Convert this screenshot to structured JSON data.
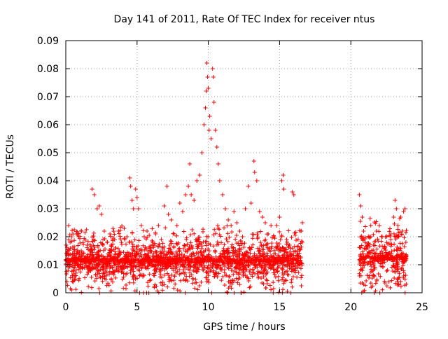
{
  "chart_data": {
    "type": "scatter",
    "title": "Day 141 of 2011, Rate Of TEC Index for receiver ntus",
    "xlabel": "GPS time / hours",
    "ylabel": "ROTI / TECUs",
    "xlim": [
      0,
      25
    ],
    "ylim": [
      0,
      0.09
    ],
    "xticks": [
      0,
      5,
      10,
      15,
      20,
      25
    ],
    "xtick_labels": [
      "0",
      "5",
      "10",
      "15",
      "20",
      "25"
    ],
    "yticks": [
      0,
      0.01,
      0.02,
      0.03,
      0.04,
      0.05,
      0.06,
      0.07,
      0.08,
      0.09
    ],
    "ytick_labels": [
      "0",
      "0.01",
      "0.02",
      "0.03",
      "0.04",
      "0.05",
      "0.06",
      "0.07",
      "0.08",
      "0.09"
    ],
    "grid": true,
    "marker": "plus",
    "color": "#ff0000",
    "series": [
      {
        "points": [
          [
            0.1,
            0.012
          ],
          [
            0.2,
            0.024
          ],
          [
            0.3,
            0.018
          ],
          [
            0.5,
            0.021
          ],
          [
            0.7,
            0.011
          ],
          [
            0.9,
            0.02
          ],
          [
            1.1,
            0.022
          ],
          [
            1.3,
            0.009
          ],
          [
            1.5,
            0.017
          ],
          [
            1.7,
            0.013
          ],
          [
            1.85,
            0.037
          ],
          [
            2.0,
            0.035
          ],
          [
            2.2,
            0.03
          ],
          [
            2.35,
            0.031
          ],
          [
            2.5,
            0.028
          ],
          [
            2.7,
            0.022
          ],
          [
            2.9,
            0.018
          ],
          [
            3.1,
            0.021
          ],
          [
            3.3,
            0.019
          ],
          [
            3.5,
            0.016
          ],
          [
            3.7,
            0.022
          ],
          [
            3.9,
            0.018
          ],
          [
            4.1,
            0.023
          ],
          [
            4.3,
            0.02
          ],
          [
            4.5,
            0.041
          ],
          [
            4.55,
            0.038
          ],
          [
            4.65,
            0.033
          ],
          [
            4.75,
            0.03
          ],
          [
            4.9,
            0.037
          ],
          [
            5.0,
            0.034
          ],
          [
            5.1,
            0.03
          ],
          [
            5.3,
            0.024
          ],
          [
            5.5,
            0.02
          ],
          [
            5.7,
            0.022
          ],
          [
            5.9,
            0.016
          ],
          [
            6.1,
            0.018
          ],
          [
            6.3,
            0.021
          ],
          [
            6.5,
            0.024
          ],
          [
            6.7,
            0.019
          ],
          [
            6.9,
            0.031
          ],
          [
            7.1,
            0.038
          ],
          [
            7.2,
            0.028
          ],
          [
            7.4,
            0.026
          ],
          [
            7.6,
            0.021
          ],
          [
            7.8,
            0.024
          ],
          [
            8.0,
            0.032
          ],
          [
            8.2,
            0.029
          ],
          [
            8.4,
            0.035
          ],
          [
            8.6,
            0.038
          ],
          [
            8.7,
            0.046
          ],
          [
            8.8,
            0.035
          ],
          [
            9.0,
            0.033
          ],
          [
            9.2,
            0.04
          ],
          [
            9.4,
            0.042
          ],
          [
            9.55,
            0.05
          ],
          [
            9.7,
            0.06
          ],
          [
            9.8,
            0.066
          ],
          [
            9.85,
            0.072
          ],
          [
            9.9,
            0.082
          ],
          [
            9.95,
            0.077
          ],
          [
            10.0,
            0.073
          ],
          [
            10.05,
            0.058
          ],
          [
            10.1,
            0.063
          ],
          [
            10.2,
            0.055
          ],
          [
            10.3,
            0.08
          ],
          [
            10.35,
            0.077
          ],
          [
            10.4,
            0.068
          ],
          [
            10.5,
            0.058
          ],
          [
            10.6,
            0.052
          ],
          [
            10.7,
            0.046
          ],
          [
            10.8,
            0.04
          ],
          [
            11.0,
            0.035
          ],
          [
            11.2,
            0.03
          ],
          [
            11.4,
            0.026
          ],
          [
            11.6,
            0.024
          ],
          [
            11.8,
            0.029
          ],
          [
            12.0,
            0.025
          ],
          [
            12.2,
            0.022
          ],
          [
            12.4,
            0.02
          ],
          [
            12.6,
            0.03
          ],
          [
            12.8,
            0.038
          ],
          [
            13.0,
            0.032
          ],
          [
            13.2,
            0.047
          ],
          [
            13.25,
            0.043
          ],
          [
            13.4,
            0.04
          ],
          [
            13.6,
            0.029
          ],
          [
            13.8,
            0.027
          ],
          [
            14.0,
            0.025
          ],
          [
            14.2,
            0.021
          ],
          [
            14.4,
            0.024
          ],
          [
            14.6,
            0.02
          ],
          [
            14.8,
            0.024
          ],
          [
            15.0,
            0.027
          ],
          [
            15.15,
            0.04
          ],
          [
            15.25,
            0.042
          ],
          [
            15.3,
            0.037
          ],
          [
            15.5,
            0.019
          ],
          [
            15.7,
            0.017
          ],
          [
            15.9,
            0.036
          ],
          [
            16.0,
            0.035
          ],
          [
            16.1,
            0.015
          ],
          [
            16.3,
            0.019
          ],
          [
            16.5,
            0.022
          ],
          [
            16.6,
            0.025
          ],
          [
            20.6,
            0.035
          ],
          [
            20.7,
            0.031
          ],
          [
            20.8,
            0.027
          ],
          [
            20.9,
            0.022
          ],
          [
            21.0,
            0.018
          ],
          [
            21.2,
            0.016
          ],
          [
            21.4,
            0.02
          ],
          [
            21.6,
            0.017
          ],
          [
            21.8,
            0.022
          ],
          [
            22.0,
            0.024
          ],
          [
            22.2,
            0.02
          ],
          [
            22.4,
            0.016
          ],
          [
            22.6,
            0.014
          ],
          [
            22.8,
            0.019
          ],
          [
            23.0,
            0.027
          ],
          [
            23.1,
            0.033
          ],
          [
            23.2,
            0.03
          ],
          [
            23.3,
            0.024
          ],
          [
            23.5,
            0.027
          ],
          [
            23.6,
            0.022
          ],
          [
            23.7,
            0.029
          ],
          [
            23.8,
            0.03
          ],
          [
            23.85,
            0.012
          ],
          [
            23.7,
            0.006
          ],
          [
            23.5,
            0.004
          ],
          [
            23.3,
            0.005
          ]
        ],
        "band": {
          "segments": [
            {
              "x": [
                0.0,
                16.6
              ],
              "y_min": 0.003,
              "y_max": 0.02
            },
            {
              "x": [
                20.6,
                23.9
              ],
              "y_min": 0.003,
              "y_max": 0.022
            }
          ],
          "density": 2600
        }
      }
    ]
  }
}
